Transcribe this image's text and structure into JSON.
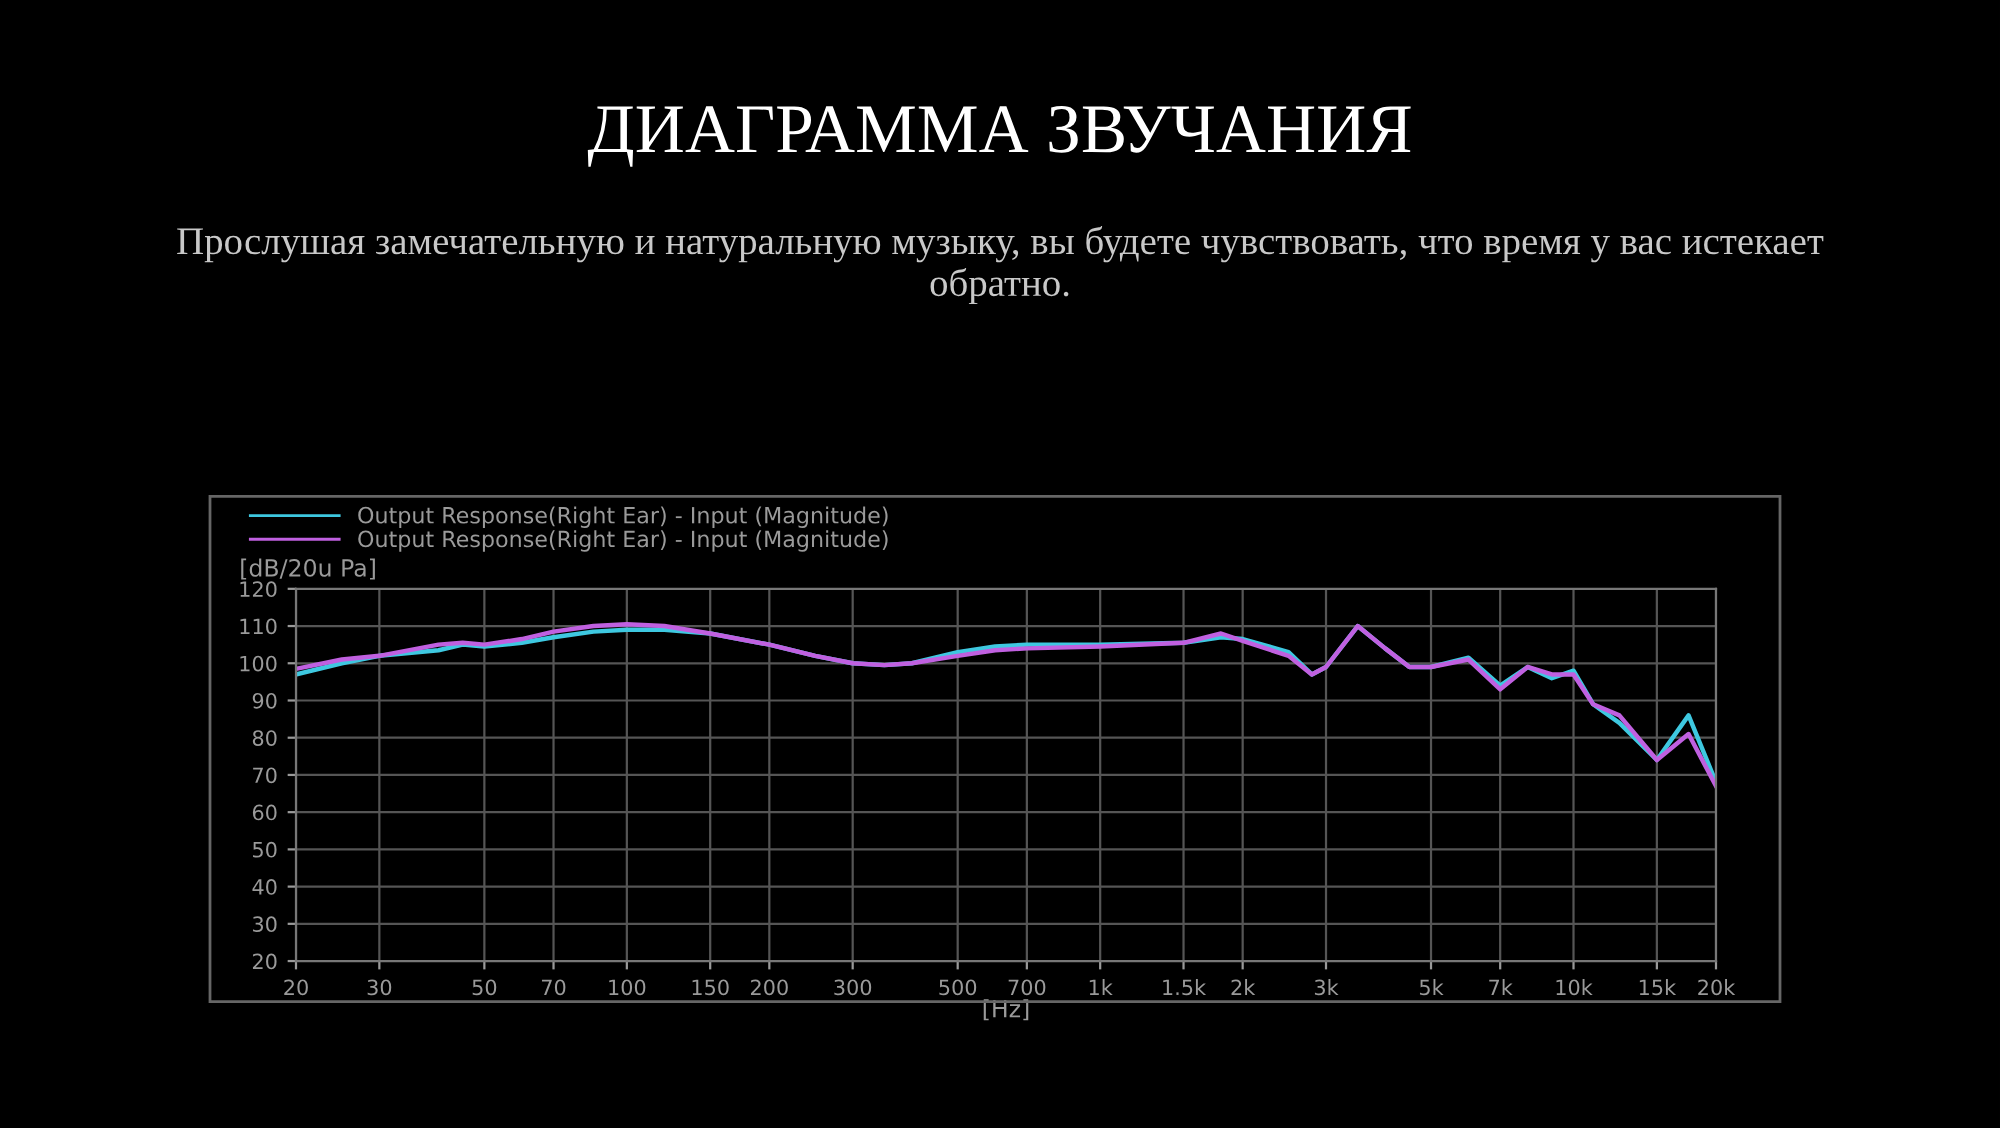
{
  "chart_data": {
    "type": "line",
    "title": "ДИАГРАММА ЗВУЧАНИЯ",
    "subtitle": "Прослушая замечательную и натуральную музыку, вы будете чувствовать, что время у вас истекает обратно.",
    "xlabel": "[Hz]",
    "ylabel": "[dB/20u Pa]",
    "log": "x",
    "xlim": [
      20,
      20000
    ],
    "xticks": [
      20,
      30,
      50,
      70,
      100,
      150,
      200,
      300,
      500,
      700,
      {
        "value": 1000,
        "label": "1k"
      },
      {
        "value": 1500,
        "label": "1.5k"
      },
      {
        "value": 2000,
        "label": "2k"
      },
      {
        "value": 3000,
        "label": "3k"
      },
      {
        "value": 5000,
        "label": "5k"
      },
      {
        "value": 7000,
        "label": "7k"
      },
      {
        "value": 10000,
        "label": "10k"
      },
      {
        "value": 15000,
        "label": "15k"
      },
      {
        "value": 20000,
        "label": "20k"
      }
    ],
    "ylim": [
      20,
      120
    ],
    "yticks": [
      20,
      30,
      40,
      50,
      60,
      70,
      80,
      90,
      100,
      110,
      120
    ],
    "grid": true,
    "legend": "top left",
    "marker": "none",
    "line_style": "solid",
    "x": [
      20,
      25,
      30,
      40,
      45,
      50,
      60,
      70,
      85,
      100,
      120,
      150,
      200,
      250,
      300,
      350,
      400,
      500,
      600,
      700,
      1000,
      1500,
      1800,
      2000,
      2500,
      2800,
      3000,
      3500,
      4000,
      4500,
      5000,
      6000,
      7000,
      8000,
      9000,
      10000,
      11000,
      12500,
      15000,
      17500,
      20000
    ],
    "series": [
      {
        "name": "Output Response(Right Ear) - Input (Magnitude)",
        "color": "#3ec8e0",
        "values": [
          97,
          100,
          102,
          103.5,
          105,
          104.5,
          105.5,
          107,
          108.5,
          109,
          109,
          108,
          105,
          102,
          100,
          99.5,
          100,
          103,
          104.5,
          105,
          105,
          105.5,
          107,
          106.5,
          103,
          97,
          99,
          110,
          104,
          99,
          99,
          101.5,
          94,
          99,
          96,
          98,
          89,
          84,
          74,
          86,
          68
        ]
      },
      {
        "name": "Output Response(Right Ear) - Input (Magnitude)",
        "color": "#c060e0",
        "values": [
          98.5,
          101,
          102,
          105,
          105.5,
          105,
          106.5,
          108.5,
          110,
          110.5,
          110,
          108,
          105,
          102,
          100,
          99.5,
          100,
          102,
          103.5,
          104,
          104.5,
          105.5,
          108,
          106,
          102,
          97,
          99,
          110,
          104,
          99,
          99,
          101,
          93,
          99,
          97,
          97,
          89,
          86,
          74,
          81,
          67
        ]
      }
    ]
  }
}
